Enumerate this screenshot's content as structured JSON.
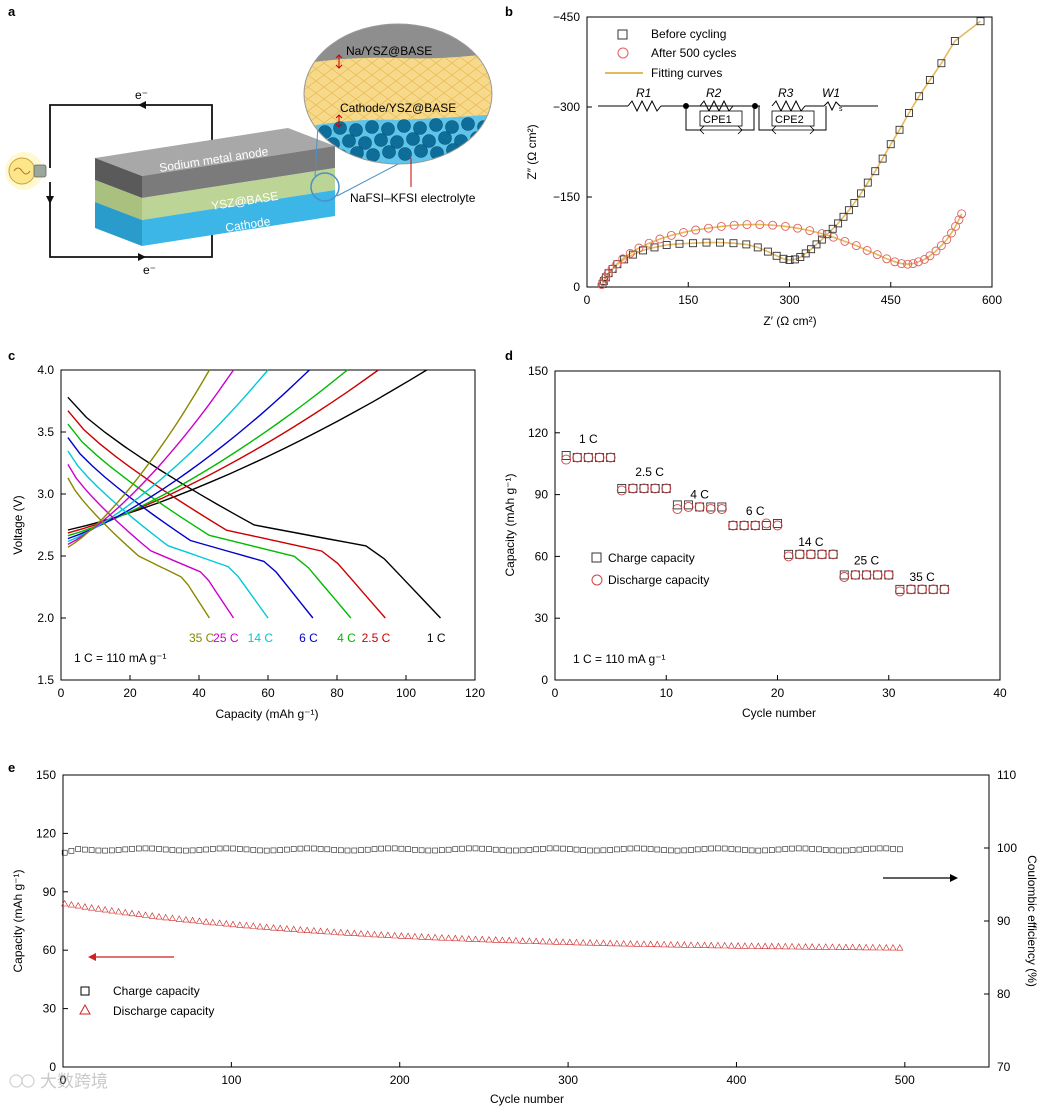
{
  "panels": {
    "a": {
      "letter": "a",
      "labels": {
        "electron_top": "e⁻",
        "electron_bottom": "e⁻",
        "anode": "Sodium metal anode",
        "separator": "YSZ@BASE",
        "cathode": "Cathode",
        "inset_top": "Na/YSZ@BASE",
        "inset_mid": "Cathode/YSZ@BASE",
        "electrolyte": "NaFSI–KFSI electrolyte"
      }
    },
    "b": {
      "letter": "b",
      "xlabel": "Z′ (Ω cm²)",
      "ylabel": "Z″ (Ω cm²)",
      "legend": [
        "Before cycling",
        "After 500 cycles",
        "Fitting curves"
      ],
      "circuit": {
        "r1": "R1",
        "r2": "R2",
        "r3": "R3",
        "w1": "W1",
        "cpe1": "CPE1",
        "cpe2": "CPE2",
        "ws": "s"
      }
    },
    "c": {
      "letter": "c",
      "xlabel": "Capacity (mAh g⁻¹)",
      "ylabel": "Voltage (V)",
      "note": "1 C = 110 mA g⁻¹"
    },
    "d": {
      "letter": "d",
      "xlabel": "Cycle number",
      "ylabel": "Capacity (mAh g⁻¹)",
      "legend": [
        "Charge capacity",
        "Discharge capacity"
      ],
      "note": "1 C = 110 mA g⁻¹"
    },
    "e": {
      "letter": "e",
      "xlabel": "Cycle number",
      "ylabel": "Capacity (mAh g⁻¹)",
      "ylabel2": "Coulombic efficiency (%)",
      "legend": [
        "Charge capacity",
        "Discharge capacity"
      ]
    }
  },
  "watermark": "大数跨境",
  "colors": {
    "rates": [
      "#000000",
      "#cc0000",
      "#00bb00",
      "#0000cc",
      "#00c8d8",
      "#cc00cc",
      "#888800"
    ],
    "open_square": "#333333",
    "open_circle": "#e06060",
    "fit": "#e6b85c",
    "anode": "#8a8a8a",
    "separator": "#b9d28f",
    "cathode": "#3bb6e6",
    "triangle": "#cc2222"
  },
  "chart_data": [
    {
      "panel": "b",
      "type": "scatter",
      "xlim": [
        0,
        600
      ],
      "ylim": [
        0,
        -450
      ],
      "xticks": [
        0,
        150,
        300,
        450,
        600
      ],
      "yticks": [
        0,
        -150,
        -300,
        -450
      ],
      "series": [
        {
          "name": "Before cycling",
          "marker": "square",
          "points": [
            [
              23,
              -5
            ],
            [
              25,
              -10
            ],
            [
              28,
              -16
            ],
            [
              32,
              -23
            ],
            [
              38,
              -30
            ],
            [
              45,
              -38
            ],
            [
              55,
              -46
            ],
            [
              68,
              -54
            ],
            [
              83,
              -61
            ],
            [
              100,
              -66
            ],
            [
              118,
              -70
            ],
            [
              137,
              -72
            ],
            [
              157,
              -73
            ],
            [
              177,
              -74
            ],
            [
              197,
              -74
            ],
            [
              217,
              -73
            ],
            [
              236,
              -71
            ],
            [
              253,
              -66
            ],
            [
              268,
              -59
            ],
            [
              281,
              -52
            ],
            [
              291,
              -47
            ],
            [
              300,
              -45
            ],
            [
              308,
              -46
            ],
            [
              316,
              -50
            ],
            [
              324,
              -56
            ],
            [
              332,
              -63
            ],
            [
              340,
              -71
            ],
            [
              348,
              -79
            ],
            [
              356,
              -88
            ],
            [
              364,
              -97
            ],
            [
              372,
              -106
            ],
            [
              380,
              -117
            ],
            [
              388,
              -128
            ],
            [
              396,
              -140
            ],
            [
              406,
              -156
            ],
            [
              416,
              -174
            ],
            [
              427,
              -193
            ],
            [
              438,
              -214
            ],
            [
              450,
              -238
            ],
            [
              463,
              -262
            ],
            [
              477,
              -290
            ],
            [
              492,
              -318
            ],
            [
              508,
              -345
            ],
            [
              525,
              -373
            ],
            [
              545,
              -410
            ],
            [
              583,
              -443
            ]
          ]
        },
        {
          "name": "After 500 cycles",
          "marker": "circle",
          "points": [
            [
              22,
              -4
            ],
            [
              24,
              -9
            ],
            [
              27,
              -15
            ],
            [
              31,
              -22
            ],
            [
              37,
              -30
            ],
            [
              44,
              -38
            ],
            [
              53,
              -47
            ],
            [
              64,
              -56
            ],
            [
              77,
              -65
            ],
            [
              92,
              -73
            ],
            [
              108,
              -80
            ],
            [
              125,
              -86
            ],
            [
              143,
              -91
            ],
            [
              161,
              -95
            ],
            [
              180,
              -98
            ],
            [
              199,
              -101
            ],
            [
              218,
              -103
            ],
            [
              237,
              -104
            ],
            [
              256,
              -104
            ],
            [
              275,
              -103
            ],
            [
              294,
              -101
            ],
            [
              312,
              -98
            ],
            [
              330,
              -94
            ],
            [
              348,
              -89
            ],
            [
              365,
              -83
            ],
            [
              382,
              -76
            ],
            [
              399,
              -69
            ],
            [
              415,
              -61
            ],
            [
              430,
              -54
            ],
            [
              444,
              -47
            ],
            [
              456,
              -42
            ],
            [
              466,
              -39
            ],
            [
              475,
              -38
            ],
            [
              483,
              -39
            ],
            [
              491,
              -42
            ],
            [
              500,
              -46
            ],
            [
              508,
              -52
            ],
            [
              517,
              -60
            ],
            [
              525,
              -69
            ],
            [
              533,
              -79
            ],
            [
              540,
              -90
            ],
            [
              546,
              -101
            ],
            [
              551,
              -112
            ],
            [
              555,
              -122
            ]
          ]
        }
      ]
    },
    {
      "panel": "c",
      "type": "line",
      "xlim": [
        0,
        120
      ],
      "ylim": [
        1.5,
        4.0
      ],
      "xticks": [
        0,
        20,
        40,
        60,
        80,
        100,
        120
      ],
      "yticks": [
        1.5,
        2.0,
        2.5,
        3.0,
        3.5,
        4.0
      ],
      "series": [
        {
          "name": "1 C",
          "charge_max": 106,
          "discharge_max": 110
        },
        {
          "name": "2.5 C",
          "charge_max": 92,
          "discharge_max": 94
        },
        {
          "name": "4 C",
          "charge_max": 83,
          "discharge_max": 84
        },
        {
          "name": "6 C",
          "charge_max": 72,
          "discharge_max": 73
        },
        {
          "name": "14 C",
          "charge_max": 60,
          "discharge_max": 60
        },
        {
          "name": "25 C",
          "charge_max": 50,
          "discharge_max": 50
        },
        {
          "name": "35 C",
          "charge_max": 43,
          "discharge_max": 43
        }
      ]
    },
    {
      "panel": "d",
      "type": "scatter",
      "xlim": [
        0,
        40
      ],
      "ylim": [
        0,
        150
      ],
      "xticks": [
        0,
        10,
        20,
        30,
        40
      ],
      "yticks": [
        0,
        30,
        60,
        90,
        120,
        150
      ],
      "rate_labels": [
        {
          "label": "1 C",
          "x": 3,
          "y": 115
        },
        {
          "label": "2.5 C",
          "x": 8.5,
          "y": 99
        },
        {
          "label": "4 C",
          "x": 13,
          "y": 88
        },
        {
          "label": "6 C",
          "x": 18,
          "y": 80
        },
        {
          "label": "14 C",
          "x": 23,
          "y": 65
        },
        {
          "label": "25 C",
          "x": 28,
          "y": 56
        },
        {
          "label": "35 C",
          "x": 33,
          "y": 48
        }
      ],
      "series": [
        {
          "name": "Charge capacity",
          "marker": "square",
          "values": [
            109,
            108,
            108,
            108,
            108,
            93,
            93,
            93,
            93,
            93,
            85,
            85,
            84,
            84,
            84,
            75,
            75,
            75,
            75,
            76,
            61,
            61,
            61,
            61,
            61,
            51,
            51,
            51,
            51,
            51,
            44,
            44,
            44,
            44,
            44
          ]
        },
        {
          "name": "Discharge capacity",
          "marker": "circle",
          "values": [
            107,
            108,
            108,
            108,
            108,
            92,
            93,
            93,
            93,
            93,
            83,
            84,
            84,
            83,
            83,
            75,
            75,
            75,
            76,
            75,
            60,
            61,
            61,
            61,
            61,
            50,
            51,
            51,
            51,
            51,
            43,
            44,
            44,
            44,
            44
          ]
        }
      ]
    },
    {
      "panel": "e",
      "type": "scatter",
      "xlim": [
        0,
        550
      ],
      "ylim": [
        0,
        150
      ],
      "y2lim": [
        70,
        110
      ],
      "xticks": [
        0,
        100,
        200,
        300,
        400,
        500
      ],
      "yticks": [
        0,
        30,
        60,
        90,
        120,
        150
      ],
      "y2ticks": [
        70,
        80,
        90,
        100,
        110
      ],
      "series": [
        {
          "name": "Charge capacity",
          "marker": "square",
          "axis": "right",
          "efficiency_start": 99.3,
          "efficiency_plateau": 99.8,
          "cycles": 500
        },
        {
          "name": "Discharge capacity",
          "marker": "triangle",
          "axis": "left",
          "capacity_start": 84,
          "capacity_end": 60,
          "cycles": 500
        }
      ]
    }
  ]
}
